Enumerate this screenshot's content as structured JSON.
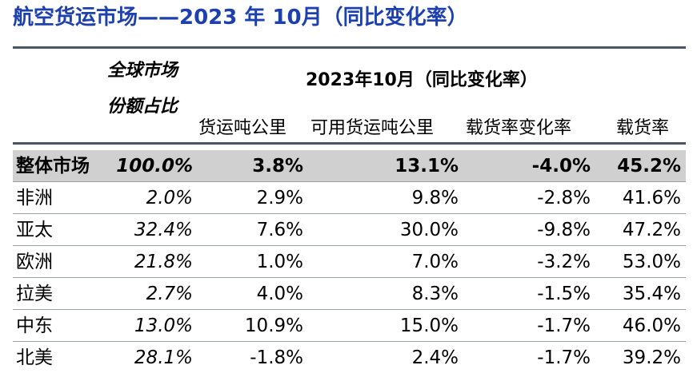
{
  "title": "航空货运市场——2023 年 10月（同比变化率）",
  "header": {
    "share_line1": "全球市场",
    "share_line2": "份额占比",
    "group_title": "2023年10月（同比变化率）",
    "columns": [
      "货运吨公里",
      "可用货运吨公里",
      "载货率变化率",
      "载货率"
    ]
  },
  "rows": [
    {
      "region": "整体市场",
      "share": "100.0%",
      "ctk": "3.8%",
      "actk": "13.1%",
      "lf_change": "-4.0%",
      "lf": "45.2%"
    },
    {
      "region": "非洲",
      "share": "2.0%",
      "ctk": "2.9%",
      "actk": "9.8%",
      "lf_change": "-2.8%",
      "lf": "41.6%"
    },
    {
      "region": "亚太",
      "share": "32.4%",
      "ctk": "7.6%",
      "actk": "30.0%",
      "lf_change": "-9.8%",
      "lf": "47.2%"
    },
    {
      "region": "欧洲",
      "share": "21.8%",
      "ctk": "1.0%",
      "actk": "7.0%",
      "lf_change": "-3.2%",
      "lf": "53.0%"
    },
    {
      "region": "拉美",
      "share": "2.7%",
      "ctk": "4.0%",
      "actk": "8.3%",
      "lf_change": "-1.5%",
      "lf": "35.4%"
    },
    {
      "region": "中东",
      "share": "13.0%",
      "ctk": "10.9%",
      "actk": "15.0%",
      "lf_change": "-1.7%",
      "lf": "46.0%"
    },
    {
      "region": "北美",
      "share": "28.1%",
      "ctk": "-1.8%",
      "actk": "2.4%",
      "lf_change": "-1.7%",
      "lf": "39.2%"
    }
  ]
}
